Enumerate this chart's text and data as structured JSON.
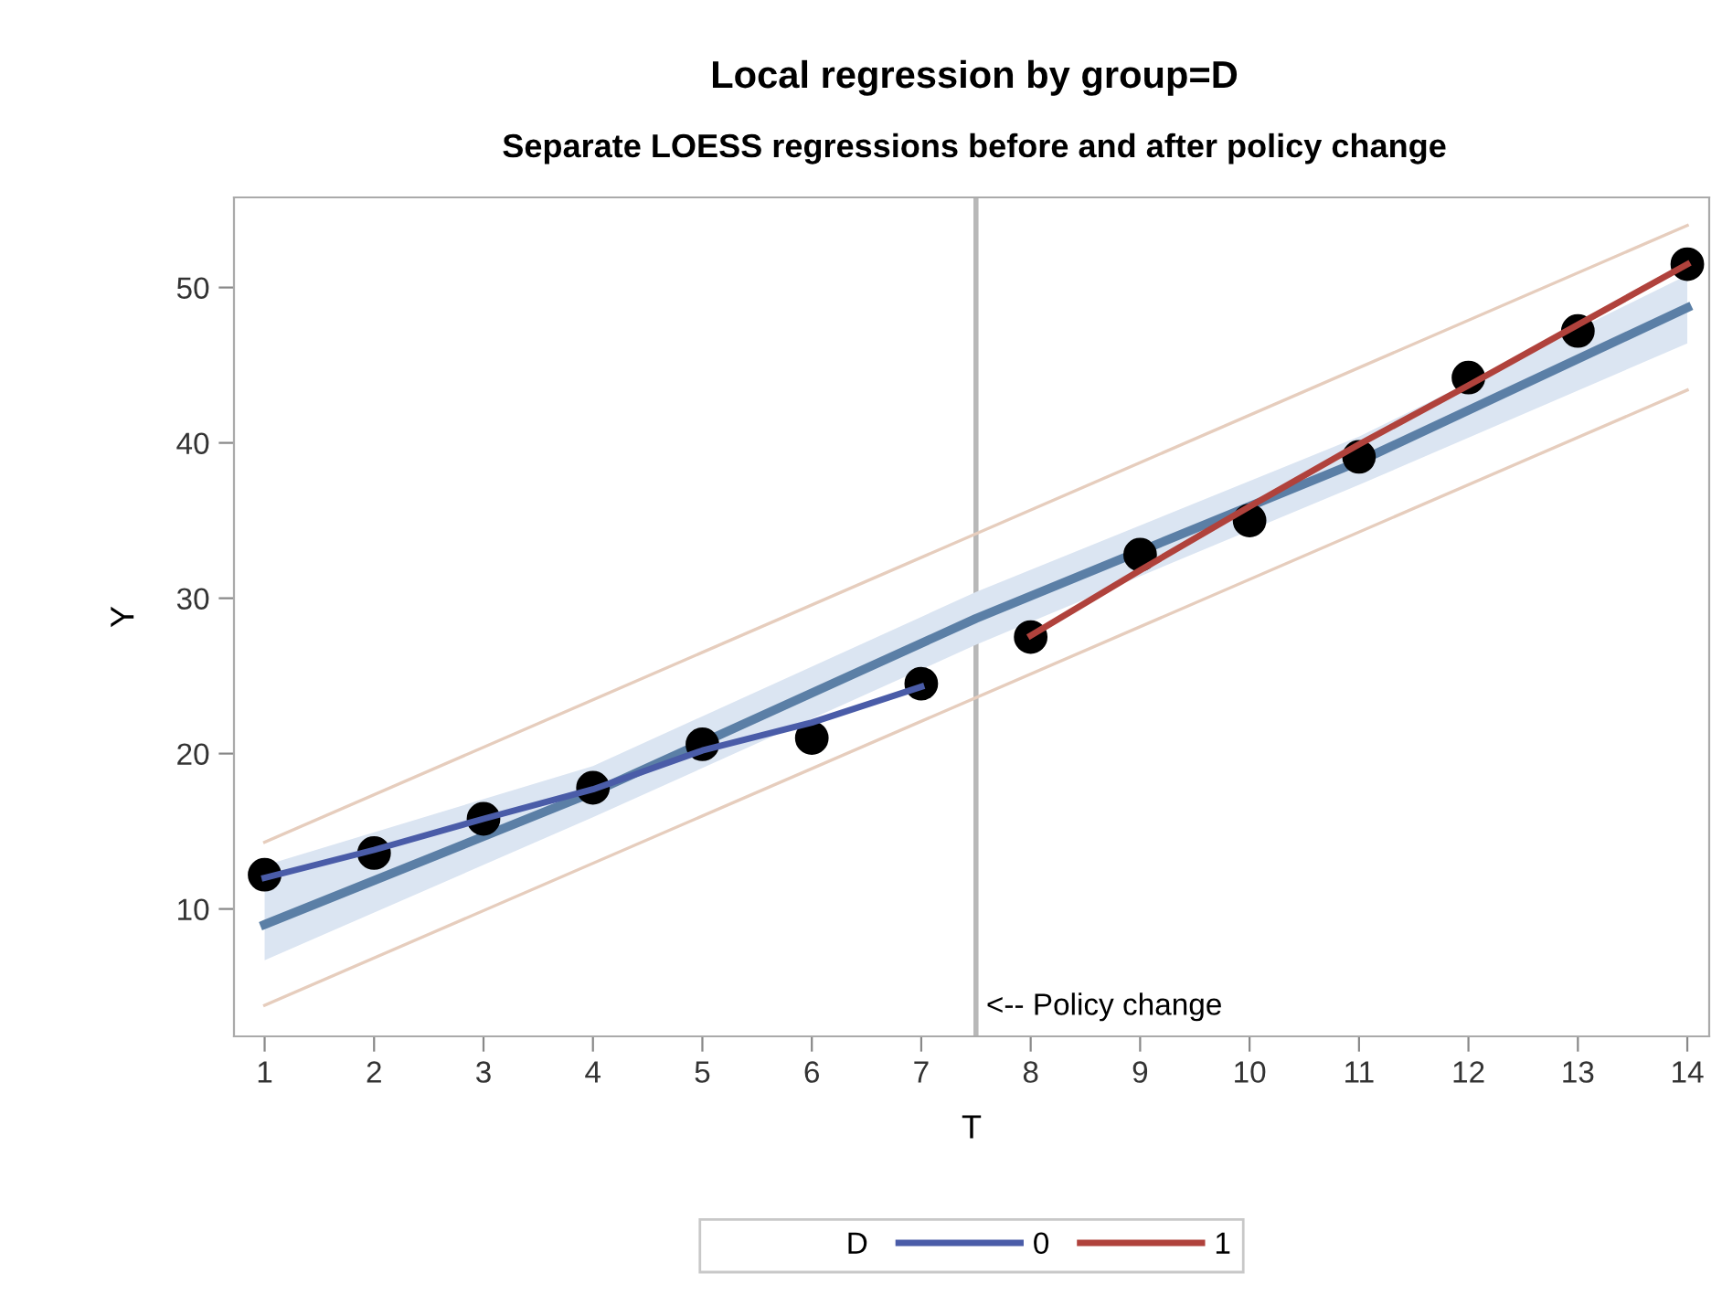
{
  "chart_data": {
    "type": "line",
    "title": "Local regression by group=D",
    "subtitle": "Separate LOESS regressions before and after policy change",
    "xlabel": "T",
    "ylabel": "Y",
    "legend_title": "D",
    "xlim": [
      0.72,
      14.2
    ],
    "ylim": [
      1.8,
      55.8
    ],
    "xticks": [
      1,
      2,
      3,
      4,
      5,
      6,
      7,
      8,
      9,
      10,
      11,
      12,
      13,
      14
    ],
    "yticks": [
      10,
      20,
      30,
      40,
      50
    ],
    "grid": false,
    "legend": "bottom",
    "ref_lines": [
      {
        "axis": "x",
        "value": 7.5,
        "label": "<-- Policy change",
        "color": "#b8b8b8"
      }
    ],
    "series": [
      {
        "color": "#5b7fa6",
        "x": [
          1,
          4,
          7.5,
          11,
          14
        ],
        "values": [
          9.0,
          17.5,
          28.7,
          38.8,
          48.7
        ],
        "lower": [
          6.7,
          15.9,
          27.0,
          37.3,
          46.4
        ],
        "upper": [
          12.8,
          19.2,
          30.4,
          40.4,
          50.8
        ]
      },
      {
        "color": "#e6cdbd",
        "x": [
          1,
          14
        ],
        "values": [
          14.3,
          54.0
        ]
      },
      {
        "color": "#e6cdbd",
        "x": [
          1,
          14
        ],
        "values": [
          3.8,
          43.4
        ]
      },
      {
        "type": "scatter",
        "color": "#000000",
        "marker": "circle",
        "x": [
          1,
          2,
          3,
          4,
          5,
          6,
          7,
          8,
          9,
          10,
          11,
          12,
          13,
          14
        ],
        "values": [
          12.2,
          13.6,
          15.8,
          17.8,
          20.6,
          21.0,
          24.5,
          27.5,
          32.8,
          35.0,
          39.1,
          44.2,
          47.2,
          51.5
        ]
      },
      {
        "name": "0",
        "color": "#4a5ca8",
        "x": [
          1,
          2,
          3,
          4,
          5,
          6,
          7
        ],
        "values": [
          12.0,
          13.8,
          15.8,
          17.7,
          20.2,
          22.0,
          24.3
        ]
      },
      {
        "name": "1",
        "color": "#b0423c",
        "x": [
          8,
          9,
          10,
          11,
          12,
          13,
          14
        ],
        "values": [
          27.6,
          31.8,
          35.9,
          39.9,
          43.7,
          47.6,
          51.5
        ]
      }
    ]
  }
}
